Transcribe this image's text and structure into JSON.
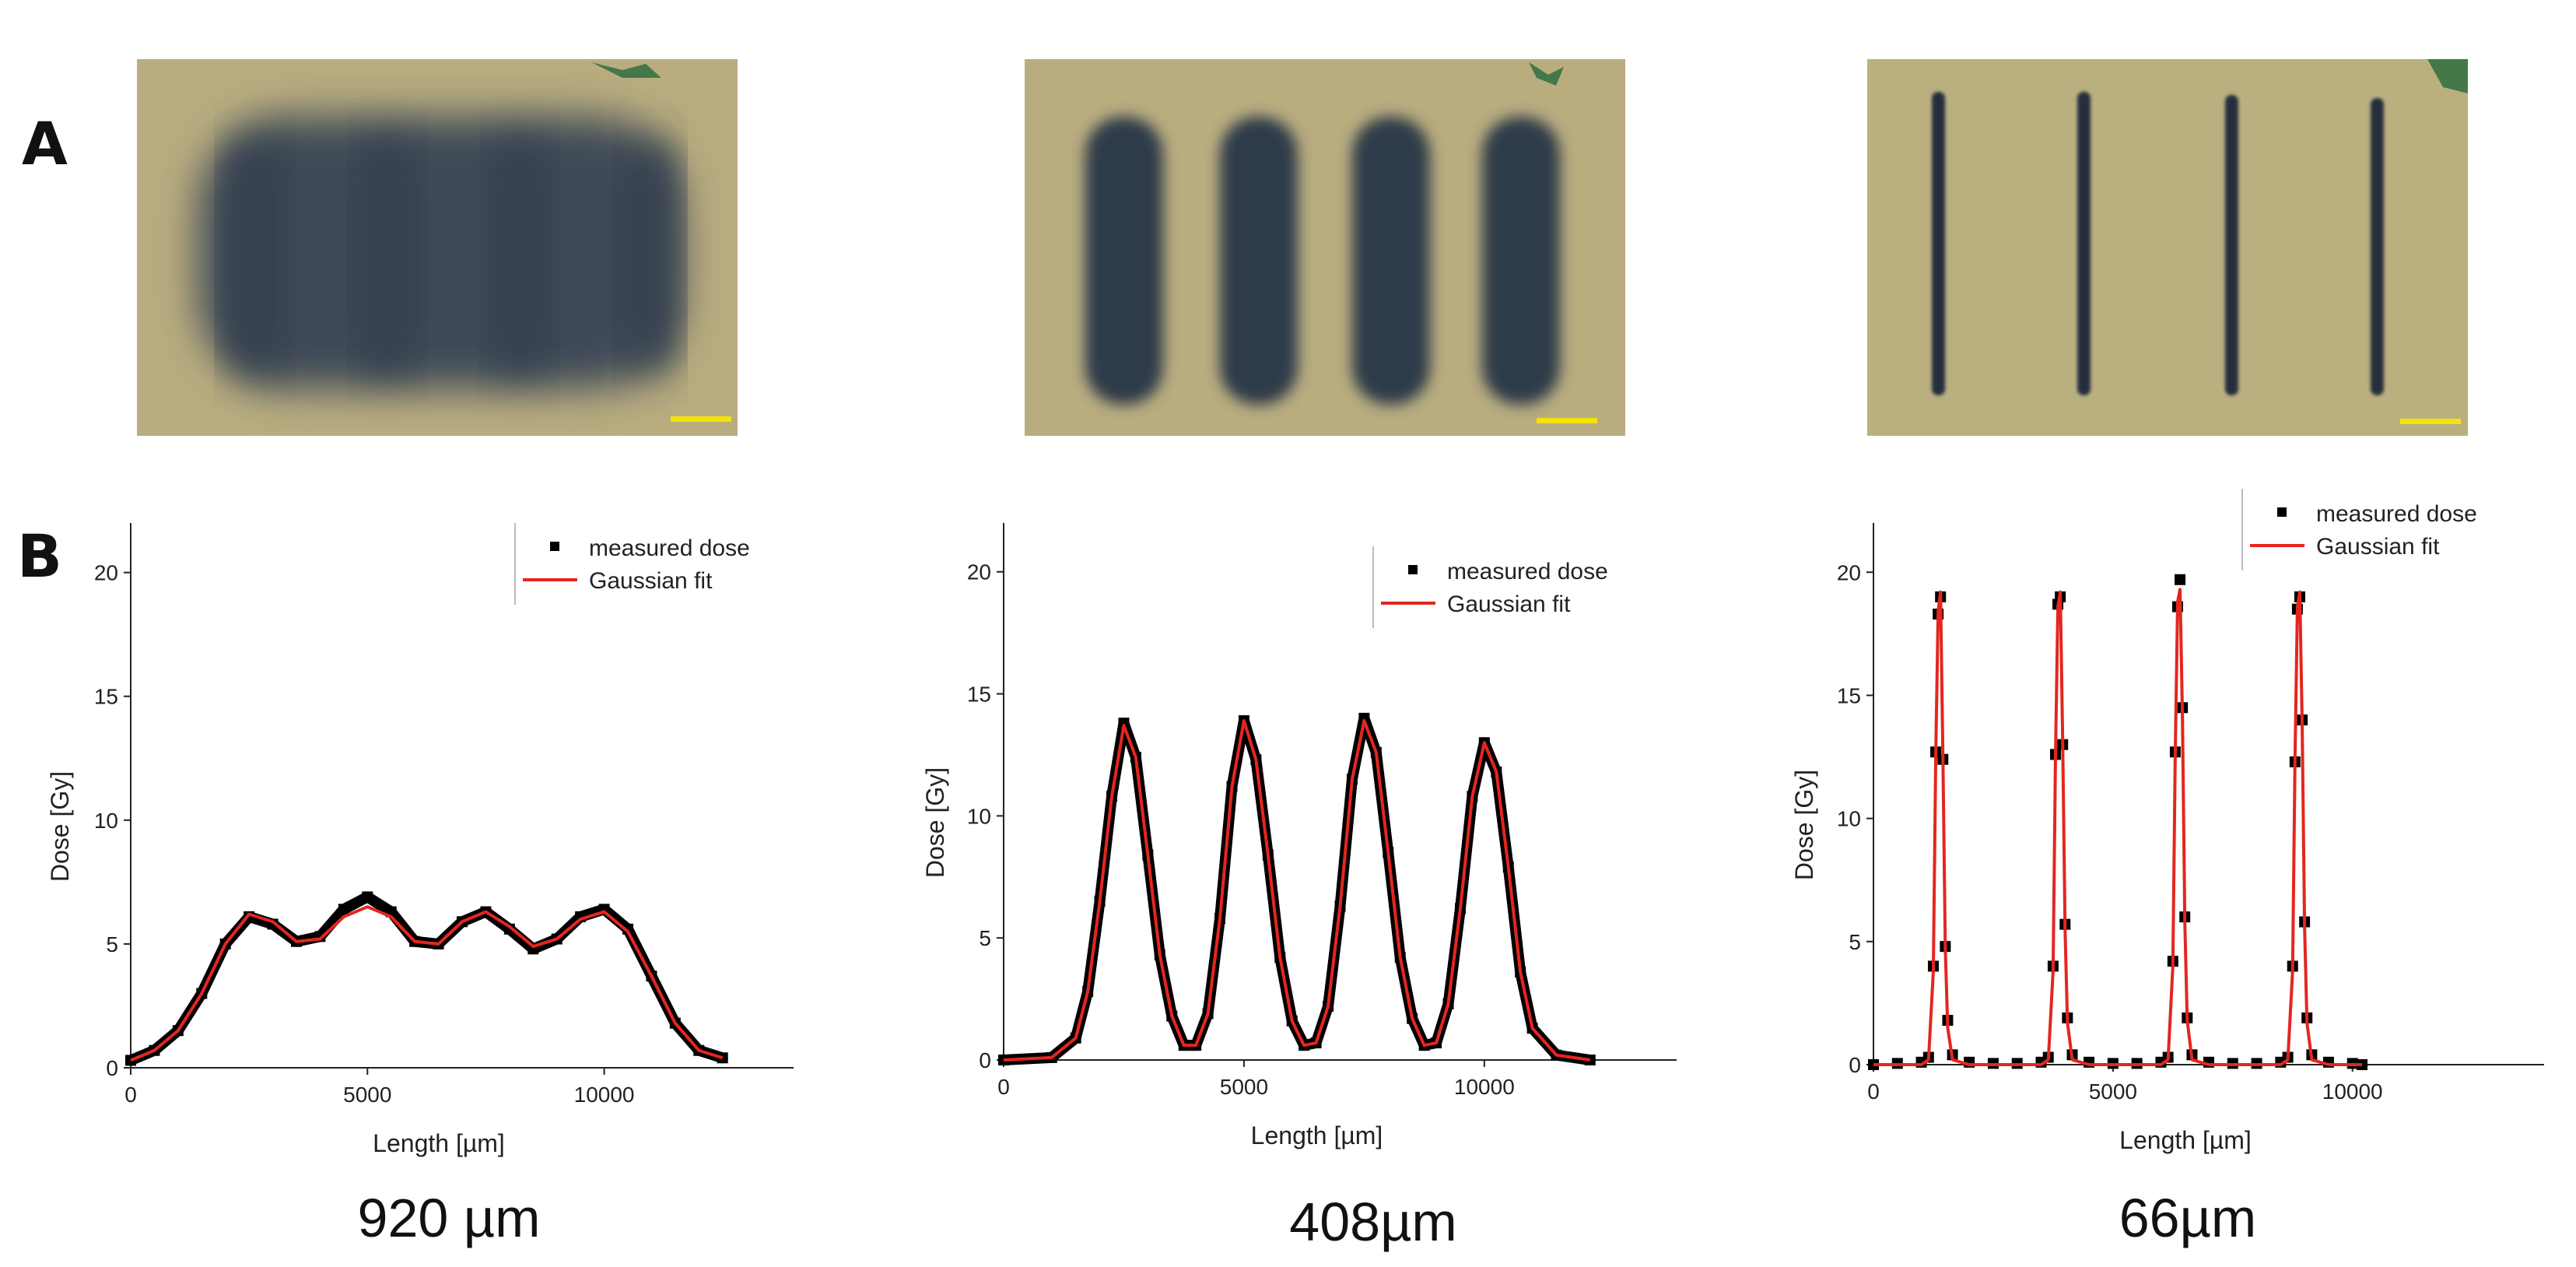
{
  "panels": {
    "a_label": "A",
    "b_label": "B"
  },
  "colors": {
    "film_background": "#b8ad80",
    "film_dark": "#3a4856",
    "film_stripe": "#2c3442",
    "scalebar": "#f2e40a",
    "measured": "#000000",
    "fit": "#e3261f",
    "axis": "#222222",
    "debris": "#2f6e3e"
  },
  "captions": [
    "920 µm",
    "408µm",
    "66µm"
  ],
  "chart_data": [
    {
      "type": "scatter",
      "xlabel": "Length [µm]",
      "ylabel": "Dose [Gy]",
      "xlim": [
        0,
        14000
      ],
      "ylim": [
        0,
        22
      ],
      "xticks": [
        0,
        5000,
        10000
      ],
      "xticklabels": [
        "0",
        "5000",
        "10000"
      ],
      "yticks": [
        0,
        5,
        10,
        15,
        20
      ],
      "yticklabels": [
        "0",
        "5",
        "10",
        "15",
        "20"
      ],
      "legend": [
        "measured dose",
        "Gaussian fit"
      ],
      "legend_position": "top-right",
      "series": [
        {
          "name": "measured dose",
          "style": "markers",
          "x": [
            0,
            500,
            1000,
            1500,
            2000,
            2500,
            3000,
            3500,
            4000,
            4500,
            5000,
            5500,
            6000,
            6500,
            7000,
            7500,
            8000,
            8500,
            9000,
            9500,
            10000,
            10500,
            11000,
            11500,
            12000,
            12500
          ],
          "y": [
            0.3,
            0.7,
            1.5,
            3.0,
            5.0,
            6.1,
            5.8,
            5.1,
            5.3,
            6.4,
            6.9,
            6.3,
            5.1,
            5.0,
            5.9,
            6.3,
            5.6,
            4.8,
            5.2,
            6.1,
            6.4,
            5.6,
            3.7,
            1.8,
            0.7,
            0.4
          ]
        },
        {
          "name": "Gaussian fit",
          "style": "line",
          "x": [
            0,
            500,
            1000,
            1500,
            2000,
            2500,
            3000,
            3500,
            4000,
            4500,
            5000,
            5500,
            6000,
            6500,
            7000,
            7500,
            8000,
            8500,
            9000,
            9500,
            10000,
            10500,
            11000,
            11500,
            12000,
            12500
          ],
          "y": [
            0.3,
            0.7,
            1.5,
            3.0,
            5.0,
            6.2,
            5.9,
            5.1,
            5.2,
            6.1,
            6.5,
            6.1,
            5.1,
            5.0,
            5.9,
            6.3,
            5.7,
            4.9,
            5.2,
            6.0,
            6.3,
            5.5,
            3.7,
            1.8,
            0.7,
            0.4
          ]
        }
      ]
    },
    {
      "type": "scatter",
      "xlabel": "Length [µm]",
      "ylabel": "Dose [Gy]",
      "xlim": [
        0,
        14000
      ],
      "ylim": [
        0,
        22
      ],
      "xticks": [
        0,
        5000,
        10000
      ],
      "xticklabels": [
        "0",
        "5000",
        "10000"
      ],
      "yticks": [
        0,
        5,
        10,
        15,
        20
      ],
      "yticklabels": [
        "0",
        "5",
        "10",
        "15",
        "20"
      ],
      "legend": [
        "measured dose",
        "Gaussian fit"
      ],
      "legend_position": "top-right",
      "series": [
        {
          "name": "measured dose",
          "style": "markers",
          "x": [
            0,
            1000,
            1500,
            1750,
            2000,
            2250,
            2500,
            2750,
            3000,
            3250,
            3500,
            3750,
            4000,
            4250,
            4500,
            4750,
            5000,
            5250,
            5500,
            5750,
            6000,
            6250,
            6500,
            6750,
            7000,
            7250,
            7500,
            7750,
            8000,
            8250,
            8500,
            8750,
            9000,
            9250,
            9500,
            9750,
            10000,
            10250,
            10500,
            10750,
            11000,
            11500,
            12200
          ],
          "y": [
            0.0,
            0.1,
            0.9,
            2.8,
            6.5,
            10.8,
            13.8,
            12.4,
            8.4,
            4.3,
            1.8,
            0.6,
            0.6,
            1.9,
            5.8,
            11.2,
            13.9,
            12.3,
            8.4,
            4.2,
            1.6,
            0.6,
            0.7,
            2.2,
            6.3,
            11.5,
            14.0,
            12.6,
            8.5,
            4.2,
            1.7,
            0.6,
            0.7,
            2.3,
            6.2,
            10.8,
            13.0,
            11.8,
            7.9,
            3.6,
            1.3,
            0.2,
            0.0
          ]
        },
        {
          "name": "Gaussian fit",
          "style": "line",
          "x": [
            0,
            1000,
            1500,
            1750,
            2000,
            2250,
            2500,
            2750,
            3000,
            3250,
            3500,
            3750,
            4000,
            4250,
            4500,
            4750,
            5000,
            5250,
            5500,
            5750,
            6000,
            6250,
            6500,
            6750,
            7000,
            7250,
            7500,
            7750,
            8000,
            8250,
            8500,
            8750,
            9000,
            9250,
            9500,
            9750,
            10000,
            10250,
            10500,
            10750,
            11000,
            11500,
            12200
          ],
          "y": [
            0.0,
            0.1,
            0.9,
            2.8,
            6.5,
            10.8,
            13.7,
            12.4,
            8.4,
            4.3,
            1.8,
            0.6,
            0.6,
            1.9,
            5.8,
            11.2,
            13.9,
            12.3,
            8.4,
            4.2,
            1.6,
            0.6,
            0.7,
            2.2,
            6.3,
            11.5,
            13.9,
            12.6,
            8.5,
            4.2,
            1.7,
            0.6,
            0.7,
            2.3,
            6.2,
            10.8,
            13.0,
            11.8,
            7.9,
            3.6,
            1.3,
            0.2,
            0.0
          ]
        }
      ]
    },
    {
      "type": "scatter",
      "xlabel": "Length [µm]",
      "ylabel": "Dose [Gy]",
      "xlim": [
        0,
        14000
      ],
      "ylim": [
        0,
        22
      ],
      "xticks": [
        0,
        5000,
        10000
      ],
      "xticklabels": [
        "0",
        "5000",
        "10000"
      ],
      "yticks": [
        0,
        5,
        10,
        15,
        20
      ],
      "yticklabels": [
        "0",
        "5",
        "10",
        "15",
        "20"
      ],
      "legend": [
        "measured dose",
        "Gaussian fit"
      ],
      "legend_position": "top-right",
      "series": [
        {
          "name": "measured dose",
          "style": "markers",
          "x": [
            0,
            500,
            1000,
            1150,
            1250,
            1300,
            1350,
            1400,
            1450,
            1500,
            1550,
            1650,
            2000,
            2500,
            3000,
            3500,
            3650,
            3750,
            3800,
            3850,
            3900,
            3950,
            4000,
            4050,
            4150,
            4500,
            5000,
            5500,
            6000,
            6150,
            6250,
            6300,
            6350,
            6400,
            6450,
            6500,
            6550,
            6650,
            7000,
            7500,
            8000,
            8500,
            8650,
            8750,
            8800,
            8850,
            8900,
            8950,
            9000,
            9050,
            9150,
            9500,
            10000,
            10200
          ],
          "y": [
            0.0,
            0.05,
            0.1,
            0.3,
            4.0,
            12.7,
            18.3,
            19.0,
            12.4,
            4.8,
            1.8,
            0.4,
            0.1,
            0.05,
            0.05,
            0.1,
            0.3,
            4.0,
            12.6,
            18.7,
            19.0,
            13.0,
            5.7,
            1.9,
            0.4,
            0.1,
            0.05,
            0.05,
            0.1,
            0.3,
            4.2,
            12.7,
            18.6,
            19.7,
            14.5,
            6.0,
            1.9,
            0.4,
            0.1,
            0.05,
            0.05,
            0.1,
            0.3,
            4.0,
            12.3,
            18.5,
            19.0,
            14.0,
            5.8,
            1.9,
            0.4,
            0.1,
            0.05,
            0.0
          ]
        },
        {
          "name": "Gaussian fit",
          "style": "line",
          "x": [
            0,
            1000,
            1150,
            1250,
            1300,
            1350,
            1400,
            1450,
            1500,
            1550,
            1650,
            2000,
            3500,
            3650,
            3750,
            3800,
            3850,
            3900,
            3950,
            4000,
            4050,
            4150,
            4500,
            6000,
            6150,
            6250,
            6300,
            6350,
            6400,
            6450,
            6500,
            6550,
            6650,
            7000,
            8500,
            8650,
            8750,
            8800,
            8850,
            8900,
            8950,
            9000,
            9050,
            9150,
            9500,
            10200
          ],
          "y": [
            0.0,
            0.0,
            0.2,
            3.8,
            12.5,
            18.4,
            19.2,
            12.5,
            4.7,
            1.5,
            0.2,
            0.0,
            0.0,
            0.2,
            3.8,
            12.5,
            18.6,
            19.2,
            13.2,
            5.5,
            1.7,
            0.2,
            0.0,
            0.0,
            0.2,
            4.0,
            12.6,
            18.8,
            19.3,
            14.2,
            5.8,
            1.8,
            0.2,
            0.0,
            0.0,
            0.2,
            3.8,
            12.4,
            18.6,
            19.2,
            13.8,
            5.6,
            1.7,
            0.2,
            0.0,
            0.0
          ]
        }
      ]
    }
  ]
}
